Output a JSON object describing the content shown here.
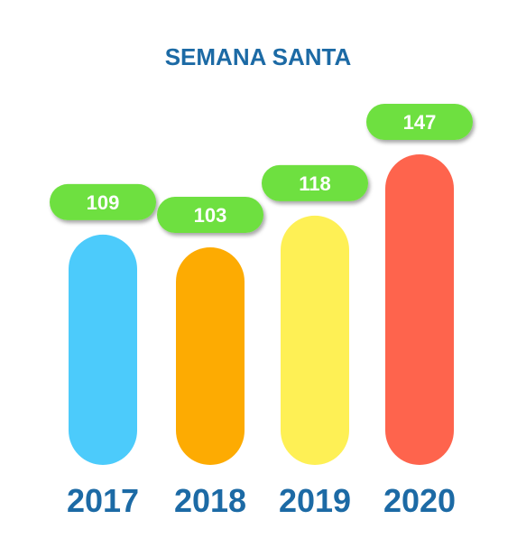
{
  "chart_data": {
    "type": "bar",
    "title": "SEMANA SANTA",
    "categories": [
      "2017",
      "2018",
      "2019",
      "2020"
    ],
    "values": [
      109,
      103,
      118,
      147
    ],
    "colors": [
      "#4ccbfb",
      "#fdab02",
      "#fef055",
      "#fe644d"
    ],
    "label_color": "#6ee03f",
    "text_color": "#1c6aa5",
    "grid": false,
    "legend": "none"
  }
}
